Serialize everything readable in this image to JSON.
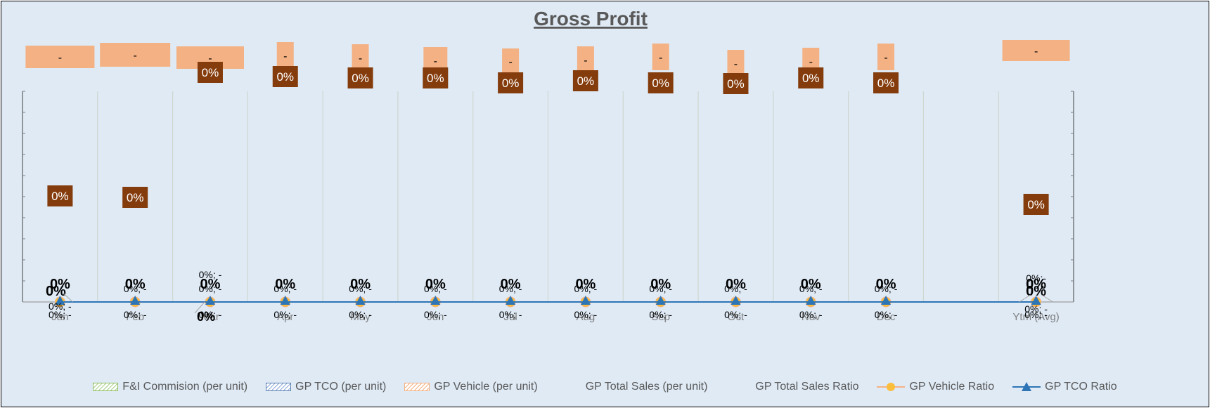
{
  "chart_data": {
    "type": "bar",
    "title": "Gross Profit",
    "categories": [
      "Jan",
      "Feb",
      "Mar",
      "Apr",
      "May",
      "Jun",
      "Jul",
      "Aug",
      "Sep",
      "Oct",
      "Nov",
      "Dec",
      "",
      "Ytm (Avg)"
    ],
    "bar_series": [
      {
        "name": "F&I Commision (per unit)",
        "color": "#a9d18e",
        "values": [
          0,
          0,
          0,
          0,
          0,
          0,
          0,
          0,
          0,
          0,
          0,
          0,
          null,
          0
        ]
      },
      {
        "name": "GP TCO (per unit)",
        "color": "#8eaadb",
        "values": [
          0,
          0,
          0,
          0,
          0,
          0,
          0,
          0,
          0,
          0,
          0,
          0,
          null,
          0
        ]
      },
      {
        "name": "GP Vehicle (per unit)",
        "color": "#f4b183",
        "values": [
          0,
          0,
          0,
          0,
          0,
          0,
          0,
          0,
          0,
          0,
          0,
          0,
          null,
          0
        ]
      }
    ],
    "label_series": [
      {
        "name": "GP Total Sales (per unit)",
        "labels": [
          "-",
          "-",
          "-",
          "-",
          "-",
          "-",
          "-",
          "-",
          "-",
          "-",
          "-",
          "-",
          "",
          "-"
        ],
        "label_color": "#f4b183"
      },
      {
        "name": "GP Total Sales Ratio",
        "labels": [
          "0%",
          "0%",
          "0%",
          "0%",
          "0%",
          "0%",
          "0%",
          "0%",
          "0%",
          "0%",
          "0%",
          "0%",
          "",
          "0%"
        ],
        "label_color": "#843c0c"
      }
    ],
    "line_series": [
      {
        "name": "GP Vehicle Ratio",
        "color": "#f4b183",
        "marker": "circle",
        "values": [
          0,
          0,
          0,
          0,
          0,
          0,
          0,
          0,
          0,
          0,
          0,
          0,
          null,
          0
        ]
      },
      {
        "name": "GP TCO Ratio",
        "color": "#2e75b6",
        "marker": "triangle",
        "values": [
          0,
          0,
          0,
          0,
          0,
          0,
          0,
          0,
          0,
          0,
          0,
          0,
          null,
          0
        ]
      }
    ],
    "annotations": {
      "bold_ratio_label": "0%",
      "combo_label": "0%; -",
      "alt_label": "0%;-"
    },
    "ylim": [
      0,
      1
    ],
    "grid": "vertical",
    "legend": "bottom"
  }
}
